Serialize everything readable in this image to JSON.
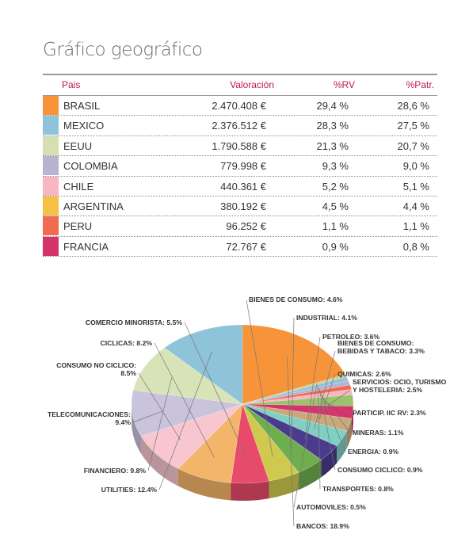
{
  "title": "Gráfico geográfico",
  "table": {
    "headers": {
      "pais": "Pais",
      "valoracion": "Valoración",
      "rv": "%RV",
      "patr": "%Patr."
    },
    "rows": [
      {
        "name": "BRASIL",
        "value": "2.470.408 €",
        "rv": "29,4 %",
        "patr": "28,6 %",
        "color": "#f7943a"
      },
      {
        "name": "MEXICO",
        "value": "2.376.512 €",
        "rv": "28,3 %",
        "patr": "27,5 %",
        "color": "#8fc3d9"
      },
      {
        "name": "EEUU",
        "value": "1.790.588 €",
        "rv": "21,3 %",
        "patr": "20,7 %",
        "color": "#d6dfb0"
      },
      {
        "name": "COLOMBIA",
        "value": "779.998 €",
        "rv": "9,3 %",
        "patr": "9,0 %",
        "color": "#b9b3d1"
      },
      {
        "name": "CHILE",
        "value": "440.361 €",
        "rv": "5,2 %",
        "patr": "5,1 %",
        "color": "#f7b6c2"
      },
      {
        "name": "ARGENTINA",
        "value": "380.192 €",
        "rv": "4,5 %",
        "patr": "4,4 %",
        "color": "#f5c043"
      },
      {
        "name": "PERU",
        "value": "96.252 €",
        "rv": "1,1 %",
        "patr": "1,1 %",
        "color": "#f06b50"
      },
      {
        "name": "FRANCIA",
        "value": "72.767 €",
        "rv": "0,9 %",
        "patr": "0,8 %",
        "color": "#d6336c"
      }
    ]
  },
  "chart_data": {
    "type": "pie",
    "title": "",
    "slices": [
      {
        "label": "BANCOS: 18.9%",
        "value": 18.9,
        "color": "#f7943a"
      },
      {
        "label": "AUTOMOVILES: 0.5%",
        "value": 0.5,
        "color": "#c8d49a"
      },
      {
        "label": "TRANSPORTES: 0.8%",
        "value": 0.8,
        "color": "#8fc3d9"
      },
      {
        "label": "CONSUMO CICLICO: 0.9%",
        "value": 0.9,
        "color": "#b9b3d1"
      },
      {
        "label": "ENERGIA: 0.9%",
        "value": 0.9,
        "color": "#f06b50"
      },
      {
        "label": "MINERAS: 1.1%",
        "value": 1.1,
        "color": "#f7b6c2"
      },
      {
        "label": "PARTICIP. IIC RV: 2.3%",
        "value": 2.3,
        "color": "#9bc36b"
      },
      {
        "label": "SERVICIOS: OCIO, TURISMO Y HOSTELERIA: 2.5%",
        "value": 2.5,
        "color": "#d6336c"
      },
      {
        "label": "QUIMICAS: 2.6%",
        "value": 2.6,
        "color": "#c9a97a"
      },
      {
        "label": "BIENES DE CONSUMO: BEBIDAS Y TABACO: 3.3%",
        "value": 3.3,
        "color": "#7fcfc4"
      },
      {
        "label": "PETROLEO: 3.6%",
        "value": 3.6,
        "color": "#4a3b8c"
      },
      {
        "label": "INDUSTRIAL: 4.1%",
        "value": 4.1,
        "color": "#6fae4f"
      },
      {
        "label": "BIENES DE CONSUMO: 4.6%",
        "value": 4.6,
        "color": "#cfc94f"
      },
      {
        "label": "COMERCIO MINORISTA: 5.5%",
        "value": 5.5,
        "color": "#e84a6a"
      },
      {
        "label": "CICLICAS: 8.2%",
        "value": 8.2,
        "color": "#f3b56a"
      },
      {
        "label": "CONSUMO NO CICLICO: 8.5%",
        "value": 8.5,
        "color": "#f7c6cf"
      },
      {
        "label": "TELECOMUNICACIONES: 9.4%",
        "value": 9.4,
        "color": "#c9c3db"
      },
      {
        "label": "FINANCIERO: 9.8%",
        "value": 9.8,
        "color": "#d9e3b8"
      },
      {
        "label": "UTILITIES: 12.4%",
        "value": 12.4,
        "color": "#8fc3d9"
      }
    ]
  }
}
